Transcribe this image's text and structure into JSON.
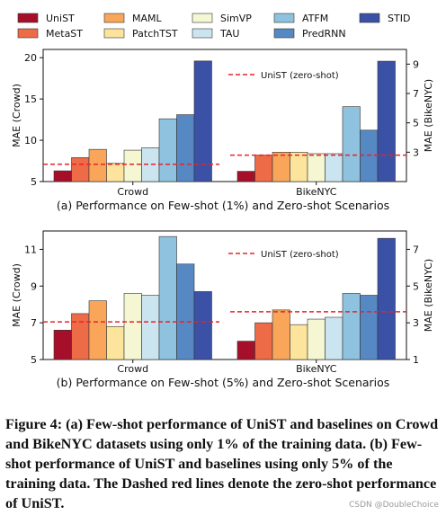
{
  "colors": {
    "UniST": "#a50f2a",
    "MetaST": "#ee6b47",
    "MAML": "#f9a65b",
    "PatchTST": "#fde49c",
    "SimVP": "#f5f6d2",
    "TAU": "#cbe5f0",
    "ATFM": "#8ec2de",
    "PredRNN": "#5689c4",
    "STID": "#3a51a6",
    "dashed_line": "#e8232a"
  },
  "legend": [
    "UniST",
    "MetaST",
    "MAML",
    "PatchTST",
    "SimVP",
    "TAU",
    "ATFM",
    "PredRNN",
    "STID"
  ],
  "chart_data": [
    {
      "type": "bar",
      "caption": "(a) Performance on Few-shot (1%) and Zero-shot Scenarios",
      "categories": [
        "Crowd",
        "BikeNYC"
      ],
      "ylabel_left": "MAE (Crowd)",
      "ylabel_right": "MAE (BikeNYC)",
      "ylim_left": [
        5,
        21
      ],
      "ylim_right": [
        1,
        10
      ],
      "yticks_left": [
        5,
        10,
        15,
        20
      ],
      "yticks_right": [
        3,
        5,
        7,
        9
      ],
      "series": [
        {
          "name": "UniST",
          "values": [
            6.3,
            1.7
          ]
        },
        {
          "name": "MetaST",
          "values": [
            7.9,
            2.8
          ]
        },
        {
          "name": "MAML",
          "values": [
            8.9,
            3.0
          ]
        },
        {
          "name": "PatchTST",
          "values": [
            7.2,
            3.0
          ]
        },
        {
          "name": "SimVP",
          "values": [
            8.8,
            2.9
          ]
        },
        {
          "name": "TAU",
          "values": [
            9.1,
            2.9
          ]
        },
        {
          "name": "ATFM",
          "values": [
            12.6,
            6.1
          ]
        },
        {
          "name": "PredRNN",
          "values": [
            13.1,
            4.5
          ]
        },
        {
          "name": "STID",
          "values": [
            19.6,
            9.2
          ]
        }
      ],
      "zero_shot": {
        "label": "UniST (zero-shot)",
        "crowd": 7.1,
        "bikenyc": 2.8
      }
    },
    {
      "type": "bar",
      "caption": "(b) Performance on Few-shot (5%) and Zero-shot Scenarios",
      "categories": [
        "Crowd",
        "BikeNYC"
      ],
      "ylabel_left": "MAE (Crowd)",
      "ylabel_right": "MAE (BikeNYC)",
      "ylim_left": [
        5,
        12
      ],
      "ylim_right": [
        1,
        8
      ],
      "yticks_left": [
        5,
        7,
        9,
        11
      ],
      "yticks_right": [
        1,
        3,
        5,
        7
      ],
      "series": [
        {
          "name": "UniST",
          "values": [
            6.6,
            2.0
          ]
        },
        {
          "name": "MetaST",
          "values": [
            7.5,
            3.0
          ]
        },
        {
          "name": "MAML",
          "values": [
            8.2,
            3.7
          ]
        },
        {
          "name": "PatchTST",
          "values": [
            6.8,
            2.9
          ]
        },
        {
          "name": "SimVP",
          "values": [
            8.6,
            3.2
          ]
        },
        {
          "name": "TAU",
          "values": [
            8.5,
            3.3
          ]
        },
        {
          "name": "ATFM",
          "values": [
            11.7,
            4.6
          ]
        },
        {
          "name": "PredRNN",
          "values": [
            10.2,
            4.5
          ]
        },
        {
          "name": "STID",
          "values": [
            8.7,
            7.6
          ]
        }
      ],
      "zero_shot": {
        "label": "UniST (zero-shot)",
        "crowd": 7.05,
        "bikenyc": 3.6
      }
    }
  ],
  "figure_caption": "Figure 4: (a) Few-shot performance of UniST and baselines on Crowd and BikeNYC datasets using only 1% of the training data. (b) Few-shot performance of UniST and baselines using only 5% of the training data. The Dashed red lines denote the zero-shot performance of UniST.",
  "watermark": "CSDN @DoubleChoice"
}
